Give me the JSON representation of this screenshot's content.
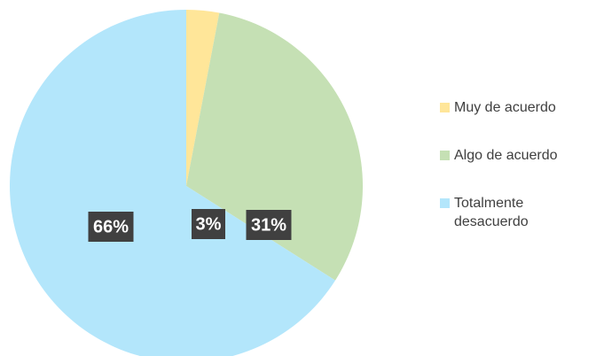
{
  "chart_data": {
    "type": "pie",
    "categories": [
      "Muy de acuerdo",
      "Algo de acuerdo",
      "Totalmente desacuerdo"
    ],
    "values": [
      3,
      31,
      66
    ],
    "value_labels": [
      "3%",
      "31%",
      "66%"
    ],
    "colors": [
      "#ffe699",
      "#c5e0b4",
      "#b3e6fb"
    ],
    "legend": "right"
  }
}
